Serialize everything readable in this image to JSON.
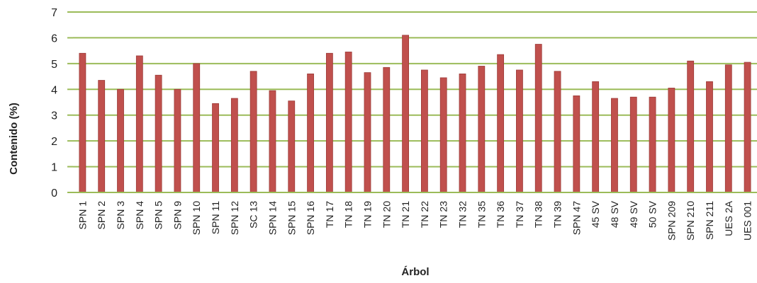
{
  "chart_data": {
    "type": "bar",
    "title": "",
    "xlabel": "Árbol",
    "ylabel": "Contenido (%)",
    "ylim": [
      0,
      7
    ],
    "yticks": [
      "0",
      "1",
      "2",
      "3",
      "4",
      "5",
      "6",
      "7"
    ],
    "grid": true,
    "categories": [
      "SPN 1",
      "SPN 2",
      "SPN 3",
      "SPN 4",
      "SPN 5",
      "SPN 9",
      "SPN 10",
      "SPN 11",
      "SPN 12",
      "SC 13",
      "SPN 14",
      "SPN 15",
      "SPN 16",
      "TN 17",
      "TN 18",
      "TN 19",
      "TN 20",
      "TN 21",
      "TN 22",
      "TN 23",
      "TN 32",
      "TN 35",
      "TN 36",
      "TN 37",
      "TN 38",
      "TN 39",
      "SPN 47",
      "45 SV",
      "48 SV",
      "49 SV",
      "50 SV",
      "SPN 209",
      "SPN 210",
      "SPN 211",
      "UES 2A",
      "UES 001"
    ],
    "values": [
      5.4,
      4.35,
      4.0,
      5.3,
      4.55,
      4.0,
      5.0,
      3.45,
      3.65,
      4.7,
      3.95,
      3.55,
      4.6,
      5.4,
      5.45,
      4.65,
      4.85,
      6.1,
      4.75,
      4.45,
      4.6,
      4.9,
      5.35,
      4.75,
      5.75,
      4.7,
      3.75,
      4.3,
      3.65,
      3.7,
      3.7,
      4.05,
      5.1,
      4.3,
      4.95,
      5.05
    ],
    "colors": {
      "bar": "#c0504d",
      "bar_edge": "#9c3a37",
      "grid": "#9bbb59",
      "axis": "#9bbb59"
    }
  }
}
